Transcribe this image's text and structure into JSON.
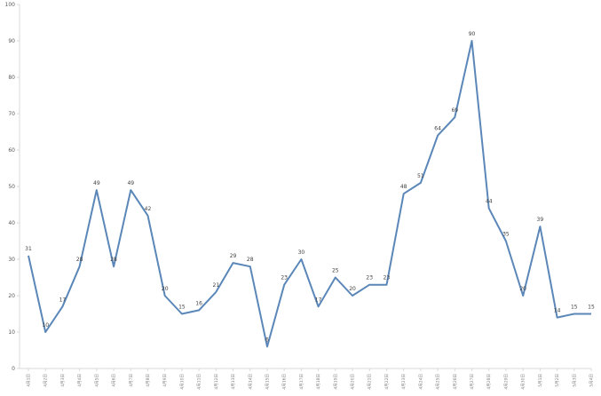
{
  "chart_data": {
    "type": "line",
    "title": "",
    "xlabel": "",
    "ylabel": "",
    "ylim": [
      0,
      100
    ],
    "yticks": [
      0,
      10,
      20,
      30,
      40,
      50,
      60,
      70,
      80,
      90,
      100
    ],
    "grid": false,
    "legend": "none",
    "line_color": "#5b87b8",
    "x": [
      "4月1日",
      "4月2日",
      "4月3日",
      "4月4日",
      "4月5日",
      "4月6日",
      "4月7日",
      "4月8日",
      "4月9日",
      "4月10日",
      "4月11日",
      "4月12日",
      "4月13日",
      "4月14日",
      "4月15日",
      "4月16日",
      "4月17日",
      "4月18日",
      "4月19日",
      "4月20日",
      "4月21日",
      "4月22日",
      "4月23日",
      "4月24日",
      "4月25日",
      "4月26日",
      "4月27日",
      "4月28日",
      "4月29日",
      "4月30日",
      "5月1日",
      "5月2日",
      "5月3日",
      "5月4日"
    ],
    "series": [
      {
        "values": [
          31,
          10,
          17,
          28,
          49,
          28,
          49,
          42,
          20,
          15,
          16,
          21,
          29,
          28,
          6,
          23,
          30,
          17,
          25,
          20,
          23,
          23,
          48,
          51,
          64,
          69,
          90,
          44,
          35,
          20,
          39,
          14,
          15,
          15
        ]
      }
    ]
  }
}
